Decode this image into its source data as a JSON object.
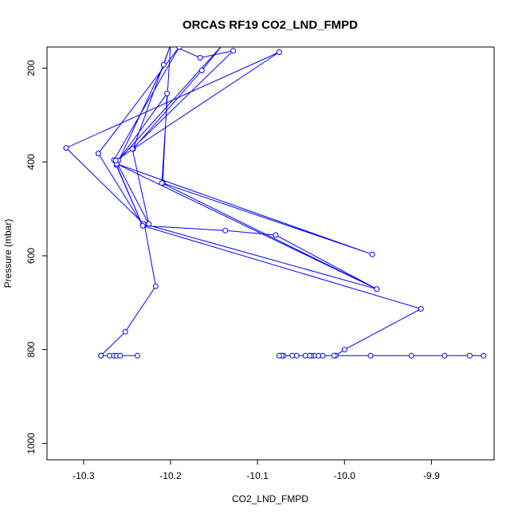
{
  "chart_data": {
    "type": "line",
    "title": "ORCAS RF19 CO2_LND_FMPD",
    "xlabel": "CO2_LND_FMPD",
    "ylabel": "Pressure (mbar)",
    "xlim": [
      -10.342,
      -9.828
    ],
    "ylim": [
      1035,
      155
    ],
    "y_reversed": true,
    "x_ticks": [
      -10.3,
      -10.2,
      -10.1,
      -10.0,
      -9.9
    ],
    "x_tick_labels": [
      "-10.3",
      "-10.2",
      "-10.1",
      "-10.0",
      "-9.9"
    ],
    "y_ticks": [
      200,
      400,
      600,
      800,
      1000
    ],
    "y_tick_labels": [
      "200",
      "400",
      "600",
      "800",
      "1000"
    ],
    "grid": false,
    "legend": "none",
    "series": [
      {
        "color": "#0000ff",
        "points": [
          [
            -10.28,
            813
          ],
          [
            -10.27,
            813
          ],
          [
            -10.265,
            813
          ],
          [
            -10.262,
            813
          ],
          [
            -10.258,
            813
          ],
          [
            -10.238,
            813
          ],
          [
            -10.28,
            813
          ],
          [
            -10.252,
            762
          ],
          [
            -10.217,
            665
          ],
          [
            -10.23,
            533
          ],
          [
            -10.232,
            535
          ],
          [
            -10.283,
            382
          ],
          [
            -10.19,
            155
          ],
          [
            -10.265,
            396
          ],
          [
            -10.232,
            536
          ],
          [
            -10.262,
            407
          ],
          [
            -10.208,
            193
          ],
          [
            -10.2,
            150
          ],
          [
            -10.243,
            372
          ],
          [
            -10.164,
            205
          ],
          [
            -10.14,
            150
          ],
          [
            -10.26,
            397
          ],
          [
            -10.204,
            254
          ],
          [
            -10.209,
            445
          ],
          [
            -9.968,
            597
          ],
          [
            -10.262,
            404
          ],
          [
            -9.963,
            671
          ],
          [
            -10.231,
            532
          ],
          [
            -10.32,
            370
          ],
          [
            -10.075,
            166
          ],
          [
            -10.263,
            397
          ],
          [
            -10.225,
            532
          ],
          [
            -10.244,
            372
          ],
          [
            -10.128,
            163
          ],
          [
            -10.166,
            178
          ],
          [
            -10.2,
            150
          ],
          [
            -10.21,
            445
          ],
          [
            -9.963,
            671
          ],
          [
            -10.079,
            556
          ],
          [
            -10.137,
            546
          ],
          [
            -10.232,
            536
          ],
          [
            -9.912,
            713
          ],
          [
            -10.0,
            800
          ],
          [
            -10.01,
            813
          ],
          [
            -9.84,
            813
          ],
          [
            -9.856,
            813
          ],
          [
            -9.885,
            813
          ],
          [
            -9.923,
            813
          ],
          [
            -9.97,
            813
          ],
          [
            -10.012,
            813
          ],
          [
            -10.025,
            813
          ],
          [
            -10.03,
            813
          ],
          [
            -10.035,
            813
          ],
          [
            -10.038,
            813
          ],
          [
            -10.04,
            813
          ],
          [
            -10.045,
            813
          ],
          [
            -10.055,
            813
          ],
          [
            -10.06,
            813
          ],
          [
            -10.07,
            813
          ],
          [
            -10.072,
            813
          ],
          [
            -10.075,
            813
          ]
        ]
      }
    ]
  }
}
